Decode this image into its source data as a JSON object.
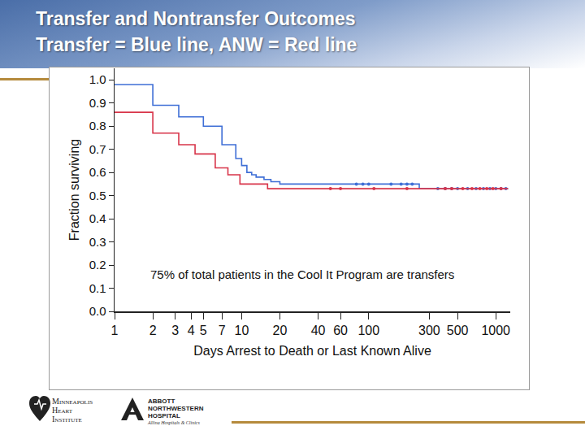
{
  "chart_data": {
    "type": "line",
    "title": "Transfer and Nontransfer Outcomes",
    "subtitle": "Transfer = Blue line, ANW = Red line",
    "x_label": "Days Arrest to Death or Last Known Alive",
    "y_label": "Fraction surviving",
    "annotation": "75% of total patients in the Cool It Program are transfers",
    "log": "x",
    "grid": false,
    "line_style": "step",
    "marker": "circle",
    "xlim": [
      1,
      1300
    ],
    "xticks": [
      1,
      2,
      3,
      4,
      5,
      7,
      10,
      20,
      40,
      60,
      100,
      300,
      500,
      1000
    ],
    "ylim": [
      0,
      1.05
    ],
    "yticks": [
      {
        "value": 0,
        "label": "0.0"
      },
      0.1,
      0.2,
      0.3,
      0.4,
      0.5,
      0.6,
      0.7,
      0.8,
      0.9,
      {
        "value": 1,
        "label": "1.0"
      }
    ],
    "series": [
      {
        "name": "Transfer",
        "color": "#3f6fd6",
        "x": [
          1,
          2,
          3.2,
          5,
          7,
          9,
          10,
          11,
          12,
          13,
          15,
          17,
          20,
          100,
          250,
          1250
        ],
        "values": [
          0.98,
          0.89,
          0.84,
          0.8,
          0.72,
          0.66,
          0.63,
          0.6,
          0.59,
          0.58,
          0.57,
          0.56,
          0.55,
          0.55,
          0.53,
          0.53
        ],
        "censored_x": [
          80,
          90,
          100,
          150,
          180,
          200,
          220,
          350,
          400,
          450,
          500,
          600,
          700,
          800,
          900,
          1000,
          1100,
          1200
        ],
        "censored_y": [
          0.55,
          0.55,
          0.55,
          0.55,
          0.55,
          0.55,
          0.55,
          0.53,
          0.53,
          0.53,
          0.53,
          0.53,
          0.53,
          0.53,
          0.53,
          0.53,
          0.53,
          0.53
        ]
      },
      {
        "name": "ANW",
        "color": "#d8354a",
        "x": [
          1,
          2,
          3.2,
          4.3,
          6.2,
          7.8,
          9.7,
          16,
          1250
        ],
        "values": [
          0.86,
          0.77,
          0.72,
          0.68,
          0.62,
          0.59,
          0.55,
          0.53,
          0.53
        ],
        "censored_x": [
          50,
          60,
          110,
          200,
          400,
          450,
          550,
          650,
          750,
          850,
          950,
          1100
        ],
        "censored_y": [
          0.53,
          0.53,
          0.53,
          0.53,
          0.53,
          0.53,
          0.53,
          0.53,
          0.53,
          0.53,
          0.53,
          0.53
        ]
      }
    ]
  },
  "logos": [
    {
      "lines": [
        "Minneapolis",
        "Heart",
        "Institute"
      ]
    },
    {
      "lines": [
        "ABBOTT",
        "NORTHWESTERN",
        "HOSPITAL"
      ],
      "tagline": "Allina Hospitals & Clinics"
    }
  ]
}
